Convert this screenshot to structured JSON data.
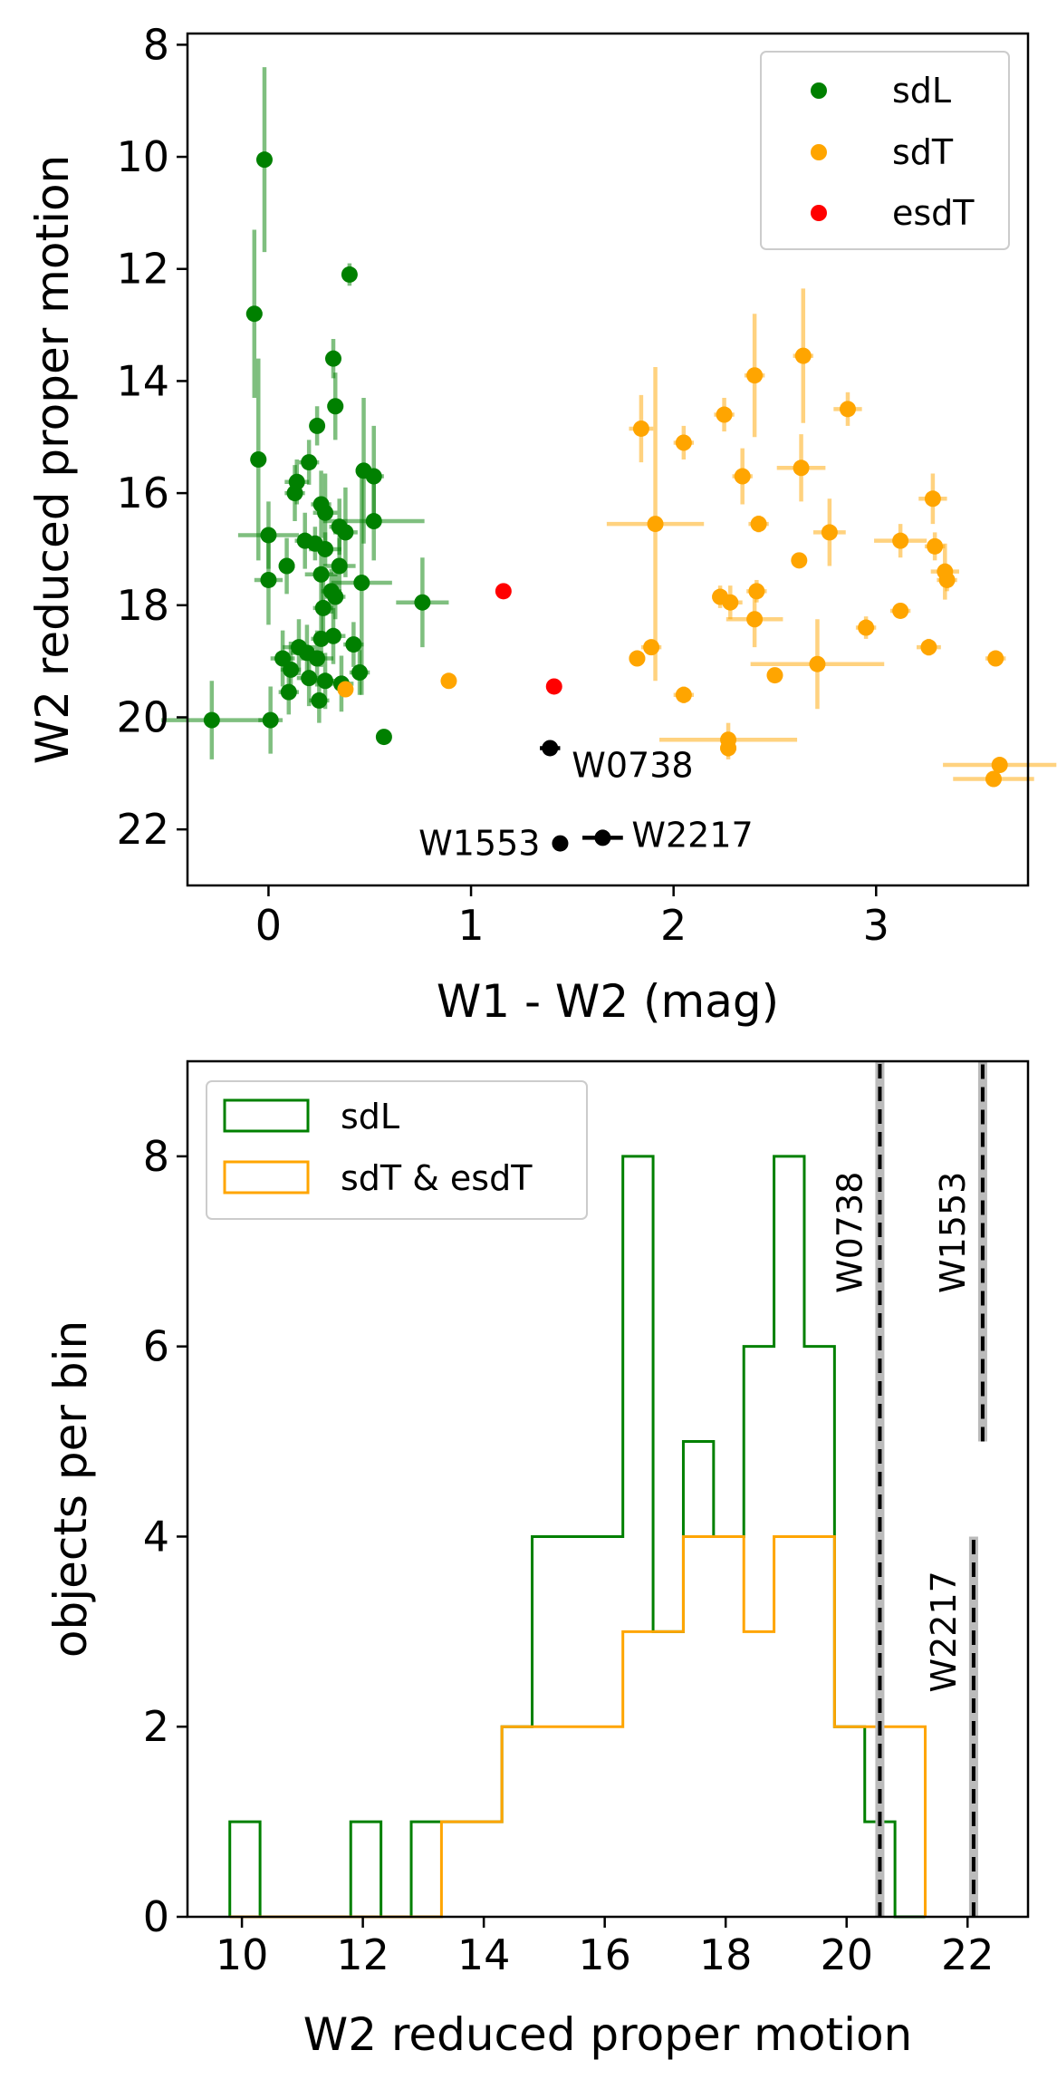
{
  "chart_data": [
    {
      "type": "scatter",
      "xlabel": "W1 - W2 (mag)",
      "ylabel": "W2 reduced proper motion",
      "xlim": [
        -0.4,
        3.75
      ],
      "ylim": [
        23.0,
        7.8
      ],
      "y_inverted": true,
      "xticks": [
        0,
        1,
        2,
        3
      ],
      "yticks": [
        8,
        10,
        12,
        14,
        16,
        18,
        20,
        22
      ],
      "grid": false,
      "legend_position": "top-right",
      "colors": {
        "sdL": "#008000",
        "sdT": "#ffa500",
        "esdT": "#ff0000",
        "labeled": "#000000"
      },
      "series": [
        {
          "name": "sdL",
          "color": "#008000",
          "errorbar_alpha": 0.5,
          "points": [
            {
              "x": -0.02,
              "y": 10.05,
              "xerr": 0.03,
              "yerr": 1.65
            },
            {
              "x": -0.07,
              "y": 12.8,
              "xerr": 0.04,
              "yerr": 1.5
            },
            {
              "x": 0.4,
              "y": 12.1,
              "xerr": 0.03,
              "yerr": 0.2
            },
            {
              "x": 0.32,
              "y": 13.6,
              "xerr": 0.03,
              "yerr": 0.35
            },
            {
              "x": 0.33,
              "y": 14.45,
              "xerr": 0.04,
              "yerr": 0.6
            },
            {
              "x": 0.24,
              "y": 14.8,
              "xerr": 0.03,
              "yerr": 0.35
            },
            {
              "x": -0.05,
              "y": 15.4,
              "xerr": 0.04,
              "yerr": 1.8
            },
            {
              "x": 0.2,
              "y": 15.45,
              "xerr": 0.05,
              "yerr": 0.4
            },
            {
              "x": 0.47,
              "y": 15.6,
              "xerr": 0.04,
              "yerr": 1.3
            },
            {
              "x": 0.52,
              "y": 15.7,
              "xerr": 0.05,
              "yerr": 0.9
            },
            {
              "x": 0.14,
              "y": 15.8,
              "xerr": 0.06,
              "yerr": 0.4
            },
            {
              "x": 0.13,
              "y": 16.0,
              "xerr": 0.05,
              "yerr": 0.5
            },
            {
              "x": 0.26,
              "y": 16.2,
              "xerr": 0.05,
              "yerr": 0.6
            },
            {
              "x": 0.28,
              "y": 16.35,
              "xerr": 0.06,
              "yerr": 0.7
            },
            {
              "x": 0.52,
              "y": 16.5,
              "xerr": 0.25,
              "yerr": 0.7
            },
            {
              "x": 0.35,
              "y": 16.6,
              "xerr": 0.05,
              "yerr": 0.5
            },
            {
              "x": 0.38,
              "y": 16.7,
              "xerr": 0.06,
              "yerr": 0.8
            },
            {
              "x": 0.0,
              "y": 16.75,
              "xerr": 0.15,
              "yerr": 0.6
            },
            {
              "x": 0.18,
              "y": 16.85,
              "xerr": 0.05,
              "yerr": 0.5
            },
            {
              "x": 0.23,
              "y": 16.9,
              "xerr": 0.05,
              "yerr": 0.3
            },
            {
              "x": 0.28,
              "y": 17.0,
              "xerr": 0.08,
              "yerr": 0.3
            },
            {
              "x": 0.09,
              "y": 17.3,
              "xerr": 0.04,
              "yerr": 0.5
            },
            {
              "x": 0.35,
              "y": 17.3,
              "xerr": 0.08,
              "yerr": 0.5
            },
            {
              "x": 0.26,
              "y": 17.45,
              "xerr": 0.08,
              "yerr": 0.5
            },
            {
              "x": 0.46,
              "y": 17.6,
              "xerr": 0.15,
              "yerr": 2.0
            },
            {
              "x": 0.0,
              "y": 17.55,
              "xerr": 0.07,
              "yerr": 0.8
            },
            {
              "x": 0.31,
              "y": 17.75,
              "xerr": 0.05,
              "yerr": 0.4
            },
            {
              "x": 0.33,
              "y": 17.85,
              "xerr": 0.05,
              "yerr": 0.4
            },
            {
              "x": 0.76,
              "y": 17.95,
              "xerr": 0.13,
              "yerr": 0.8
            },
            {
              "x": 0.27,
              "y": 18.05,
              "xerr": 0.05,
              "yerr": 0.5
            },
            {
              "x": 0.26,
              "y": 18.6,
              "xerr": 0.05,
              "yerr": 0.5
            },
            {
              "x": 0.32,
              "y": 18.55,
              "xerr": 0.06,
              "yerr": 0.5
            },
            {
              "x": 0.42,
              "y": 18.7,
              "xerr": 0.05,
              "yerr": 0.4
            },
            {
              "x": 0.15,
              "y": 18.75,
              "xerr": 0.08,
              "yerr": 0.5
            },
            {
              "x": 0.19,
              "y": 18.85,
              "xerr": 0.08,
              "yerr": 0.5
            },
            {
              "x": 0.24,
              "y": 18.95,
              "xerr": 0.08,
              "yerr": 0.5
            },
            {
              "x": 0.07,
              "y": 18.95,
              "xerr": 0.06,
              "yerr": 0.5
            },
            {
              "x": 0.11,
              "y": 19.15,
              "xerr": 0.05,
              "yerr": 0.5
            },
            {
              "x": 0.45,
              "y": 19.2,
              "xerr": 0.05,
              "yerr": 0.4
            },
            {
              "x": 0.2,
              "y": 19.3,
              "xerr": 0.06,
              "yerr": 0.5
            },
            {
              "x": 0.28,
              "y": 19.35,
              "xerr": 0.06,
              "yerr": 0.5
            },
            {
              "x": 0.36,
              "y": 19.4,
              "xerr": 0.06,
              "yerr": 0.5
            },
            {
              "x": 0.1,
              "y": 19.55,
              "xerr": 0.05,
              "yerr": 0.4
            },
            {
              "x": 0.25,
              "y": 19.7,
              "xerr": 0.05,
              "yerr": 0.4
            },
            {
              "x": -0.28,
              "y": 20.05,
              "xerr": 0.25,
              "yerr": 0.7
            },
            {
              "x": 0.01,
              "y": 20.05,
              "xerr": 0.06,
              "yerr": 0.6
            },
            {
              "x": 0.57,
              "y": 20.35,
              "xerr": 0.02,
              "yerr": 0.1
            }
          ]
        },
        {
          "name": "sdT",
          "color": "#ffa500",
          "errorbar_alpha": 0.5,
          "points": [
            {
              "x": 2.64,
              "y": 13.55,
              "xerr": 0.05,
              "yerr": 1.2
            },
            {
              "x": 2.4,
              "y": 13.9,
              "xerr": 0.05,
              "yerr": 1.1
            },
            {
              "x": 2.86,
              "y": 14.5,
              "xerr": 0.07,
              "yerr": 0.3
            },
            {
              "x": 2.25,
              "y": 14.6,
              "xerr": 0.05,
              "yerr": 0.3
            },
            {
              "x": 1.84,
              "y": 14.85,
              "xerr": 0.06,
              "yerr": 0.6
            },
            {
              "x": 2.05,
              "y": 15.1,
              "xerr": 0.05,
              "yerr": 0.3
            },
            {
              "x": 2.34,
              "y": 15.7,
              "xerr": 0.05,
              "yerr": 0.5
            },
            {
              "x": 2.63,
              "y": 15.55,
              "xerr": 0.12,
              "yerr": 0.6
            },
            {
              "x": 3.28,
              "y": 16.1,
              "xerr": 0.07,
              "yerr": 0.45
            },
            {
              "x": 2.42,
              "y": 16.55,
              "xerr": 0.05,
              "yerr": 0.15
            },
            {
              "x": 1.91,
              "y": 16.55,
              "xerr": 0.24,
              "yerr": 2.8
            },
            {
              "x": 2.77,
              "y": 16.7,
              "xerr": 0.08,
              "yerr": 0.6
            },
            {
              "x": 3.12,
              "y": 16.85,
              "xerr": 0.13,
              "yerr": 0.3
            },
            {
              "x": 3.29,
              "y": 16.95,
              "xerr": 0.05,
              "yerr": 0.25
            },
            {
              "x": 2.62,
              "y": 17.2,
              "xerr": 0.03,
              "yerr": 0.1
            },
            {
              "x": 3.34,
              "y": 17.4,
              "xerr": 0.07,
              "yerr": 0.5
            },
            {
              "x": 3.35,
              "y": 17.55,
              "xerr": 0.05,
              "yerr": 0.2
            },
            {
              "x": 2.41,
              "y": 17.75,
              "xerr": 0.05,
              "yerr": 0.2
            },
            {
              "x": 2.23,
              "y": 17.85,
              "xerr": 0.04,
              "yerr": 0.2
            },
            {
              "x": 2.28,
              "y": 17.95,
              "xerr": 0.06,
              "yerr": 0.3
            },
            {
              "x": 3.12,
              "y": 18.1,
              "xerr": 0.05,
              "yerr": 0.1
            },
            {
              "x": 2.4,
              "y": 18.25,
              "xerr": 0.14,
              "yerr": 0.5
            },
            {
              "x": 2.95,
              "y": 18.4,
              "xerr": 0.05,
              "yerr": 0.2
            },
            {
              "x": 3.26,
              "y": 18.75,
              "xerr": 0.06,
              "yerr": 0.15
            },
            {
              "x": 1.89,
              "y": 18.75,
              "xerr": 0.05,
              "yerr": 0.1
            },
            {
              "x": 1.82,
              "y": 18.95,
              "xerr": 0.04,
              "yerr": 0.1
            },
            {
              "x": 3.59,
              "y": 18.95,
              "xerr": 0.05,
              "yerr": 0.1
            },
            {
              "x": 2.71,
              "y": 19.05,
              "xerr": 0.33,
              "yerr": 0.8
            },
            {
              "x": 2.5,
              "y": 19.25,
              "xerr": 0.03,
              "yerr": 0.1
            },
            {
              "x": 0.38,
              "y": 19.5,
              "xerr": 0.03,
              "yerr": 0.1
            },
            {
              "x": 0.89,
              "y": 19.35,
              "xerr": 0.03,
              "yerr": 0.1
            },
            {
              "x": 2.05,
              "y": 19.6,
              "xerr": 0.05,
              "yerr": 0.15
            },
            {
              "x": 2.27,
              "y": 20.4,
              "xerr": 0.34,
              "yerr": 0.3
            },
            {
              "x": 2.27,
              "y": 20.55,
              "xerr": 0.04,
              "yerr": 0.2
            },
            {
              "x": 3.61,
              "y": 20.85,
              "xerr": 0.28,
              "yerr": 0.1
            },
            {
              "x": 3.58,
              "y": 21.1,
              "xerr": 0.2,
              "yerr": 0.1
            }
          ]
        },
        {
          "name": "esdT",
          "color": "#ff0000",
          "errorbar_alpha": 0.5,
          "points": [
            {
              "x": 1.16,
              "y": 17.75,
              "xerr": 0.03,
              "yerr": 0.1
            },
            {
              "x": 1.41,
              "y": 19.45,
              "xerr": 0.03,
              "yerr": 0.1
            }
          ]
        },
        {
          "color": "#000000",
          "errorbar_alpha": 1.0,
          "points": [
            {
              "x": 1.39,
              "y": 20.55,
              "xerr": 0.05,
              "yerr": 0.05,
              "label": "W0738"
            },
            {
              "x": 1.44,
              "y": 22.25,
              "xerr": 0.03,
              "yerr": 0.05,
              "label": "W1553"
            },
            {
              "x": 1.65,
              "y": 22.15,
              "xerr": 0.1,
              "yerr": 0.05,
              "label": "W2217"
            }
          ]
        }
      ]
    },
    {
      "type": "histogram",
      "xlabel": "W2 reduced proper motion",
      "ylabel": "objects per bin",
      "xlim": [
        9.1,
        23.0
      ],
      "ylim": [
        0,
        9
      ],
      "xticks": [
        10,
        12,
        14,
        16,
        18,
        20,
        22
      ],
      "yticks": [
        0,
        2,
        4,
        6,
        8
      ],
      "grid": false,
      "legend_position": "top-left",
      "bin_edges": [
        9.8,
        10.3,
        10.8,
        11.3,
        11.8,
        12.3,
        12.8,
        13.3,
        13.8,
        14.3,
        14.8,
        15.3,
        15.8,
        16.3,
        16.8,
        17.3,
        17.8,
        18.3,
        18.8,
        19.3,
        19.8,
        20.3,
        20.8,
        21.3
      ],
      "series": [
        {
          "name": "sdL",
          "color": "#008000",
          "counts": [
            1,
            0,
            0,
            0,
            1,
            0,
            1,
            1,
            1,
            2,
            4,
            4,
            4,
            8,
            3,
            5,
            4,
            6,
            8,
            6,
            2,
            1,
            0
          ]
        },
        {
          "name": "sdT & esdT",
          "color": "#ffa500",
          "counts": [
            0,
            0,
            0,
            0,
            0,
            0,
            0,
            1,
            1,
            2,
            2,
            2,
            2,
            3,
            3,
            4,
            4,
            3,
            4,
            4,
            2,
            2,
            2
          ]
        }
      ],
      "markers": [
        {
          "label": "W0738",
          "x": 20.55,
          "y_range": [
            0,
            9
          ]
        },
        {
          "label": "W1553",
          "x": 22.25,
          "y_range": [
            5,
            9
          ]
        },
        {
          "label": "W2217",
          "x": 22.1,
          "y_range": [
            0,
            4
          ]
        }
      ]
    }
  ]
}
